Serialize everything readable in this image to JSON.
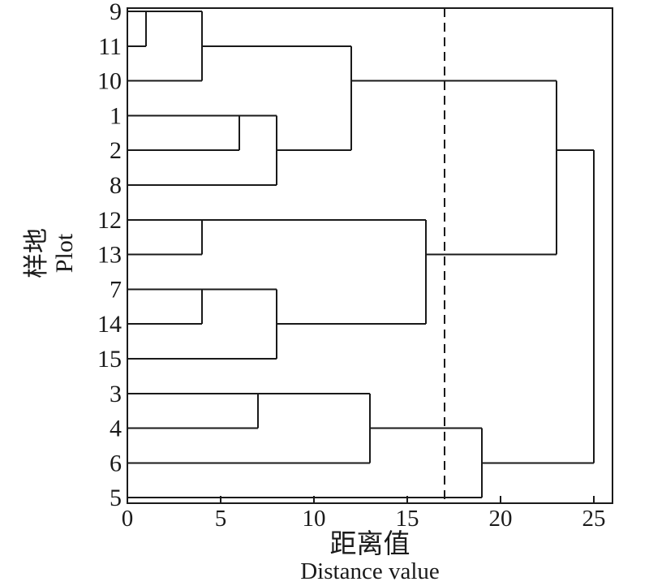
{
  "figure": {
    "xlabel_cn": "距离值",
    "xlabel_en": "Distance value",
    "ylabel_cn": "样地",
    "ylabel_en": "Plot"
  },
  "chart_data": {
    "type": "dendrogram",
    "orientation": "horizontal",
    "title": "",
    "x_axis": {
      "label_cn": "距离值",
      "label_en": "Distance value",
      "ticks": [
        0,
        5,
        10,
        15,
        20,
        25
      ],
      "range": [
        0,
        26
      ],
      "grid": false
    },
    "y_axis": {
      "label_cn": "样地",
      "label_en": "Plot"
    },
    "leaves": [
      "9",
      "11",
      "10",
      "1",
      "2",
      "8",
      "12",
      "13",
      "7",
      "14",
      "15",
      "3",
      "4",
      "6",
      "5"
    ],
    "merges": [
      {
        "a": "9",
        "b": "11",
        "d": 1
      },
      {
        "a": "#0",
        "b": "10",
        "d": 4
      },
      {
        "a": "1",
        "b": "2",
        "d": 6
      },
      {
        "a": "#2",
        "b": "8",
        "d": 8
      },
      {
        "a": "#1",
        "b": "#3",
        "d": 12
      },
      {
        "a": "12",
        "b": "13",
        "d": 4
      },
      {
        "a": "7",
        "b": "14",
        "d": 4
      },
      {
        "a": "#6",
        "b": "15",
        "d": 8
      },
      {
        "a": "#5",
        "b": "#7",
        "d": 16
      },
      {
        "a": "#4",
        "b": "#8",
        "d": 23
      },
      {
        "a": "3",
        "b": "4",
        "d": 7
      },
      {
        "a": "#10",
        "b": "6",
        "d": 13
      },
      {
        "a": "#11",
        "b": "5",
        "d": 19
      },
      {
        "a": "#9",
        "b": "#12",
        "d": 25
      }
    ],
    "cut_line": {
      "distance": 17,
      "style": "dashed"
    },
    "line_color": "#1a1a1a"
  }
}
